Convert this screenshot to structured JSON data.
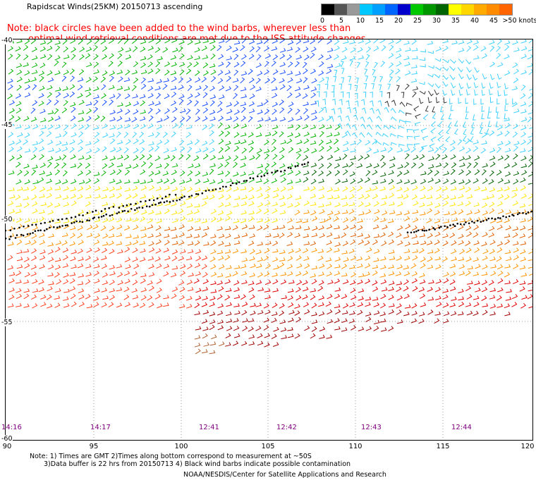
{
  "title": "Rapidscat Winds(25KM) 20150713 ascending",
  "note_line1": "Note: black circles have been added to the wind barbs, wherever less than",
  "note_line2": "optimal wind retrieval conditions are met due to the ISS attitude changes.",
  "legend": {
    "colors": [
      "#000000",
      "#555555",
      "#999999",
      "#00c8ff",
      "#00a0ff",
      "#0064ff",
      "#0000cc",
      "#00c800",
      "#009600",
      "#006400",
      "#ffff00",
      "#ffd700",
      "#ffaa00",
      "#ff8c00",
      "#ff6400",
      "#ff0000",
      "#c80000",
      "#960000",
      "#643200",
      "#c86400",
      "#ff00ff",
      "#c800c8",
      "#9600c8",
      "#6400c8",
      "#400080"
    ],
    "labels": [
      "0",
      "5",
      "10",
      "15",
      "20",
      "25",
      "30",
      "35",
      "40",
      "45",
      ">50 knots"
    ]
  },
  "lat_labels": [
    "-40",
    "-45",
    "-50",
    "-55",
    "-60"
  ],
  "lon_labels": [
    "90",
    "95",
    "100",
    "105",
    "110",
    "115",
    "120"
  ],
  "times": [
    "14:16",
    "14:17",
    "12:41",
    "12:42",
    "12:43",
    "12:44"
  ],
  "footer": {
    "line1": "Note: 1) Times are GMT 2)Times along bottom correspond to measurement at ~50S",
    "line2": "3)Data buffer is 22 hrs from 20150713 4) Black wind barbs indicate possible contamination",
    "line3": "NOAA/NESDIS/Center for Satellite Applications and Research"
  },
  "wind_colors": {
    "calm": "#333333",
    "light_blue": "#3fd0ff",
    "blue": "#1a50ff",
    "dark_blue": "#0000cc",
    "green": "#00b400",
    "dark_green": "#006400",
    "yellow": "#ffe600",
    "orange": "#ff9400",
    "dark_orange": "#e06000",
    "red_orange": "#ff4020",
    "red": "#e00000",
    "dark_red": "#a00000",
    "brown": "#b06030",
    "contaminated": "#000000"
  }
}
